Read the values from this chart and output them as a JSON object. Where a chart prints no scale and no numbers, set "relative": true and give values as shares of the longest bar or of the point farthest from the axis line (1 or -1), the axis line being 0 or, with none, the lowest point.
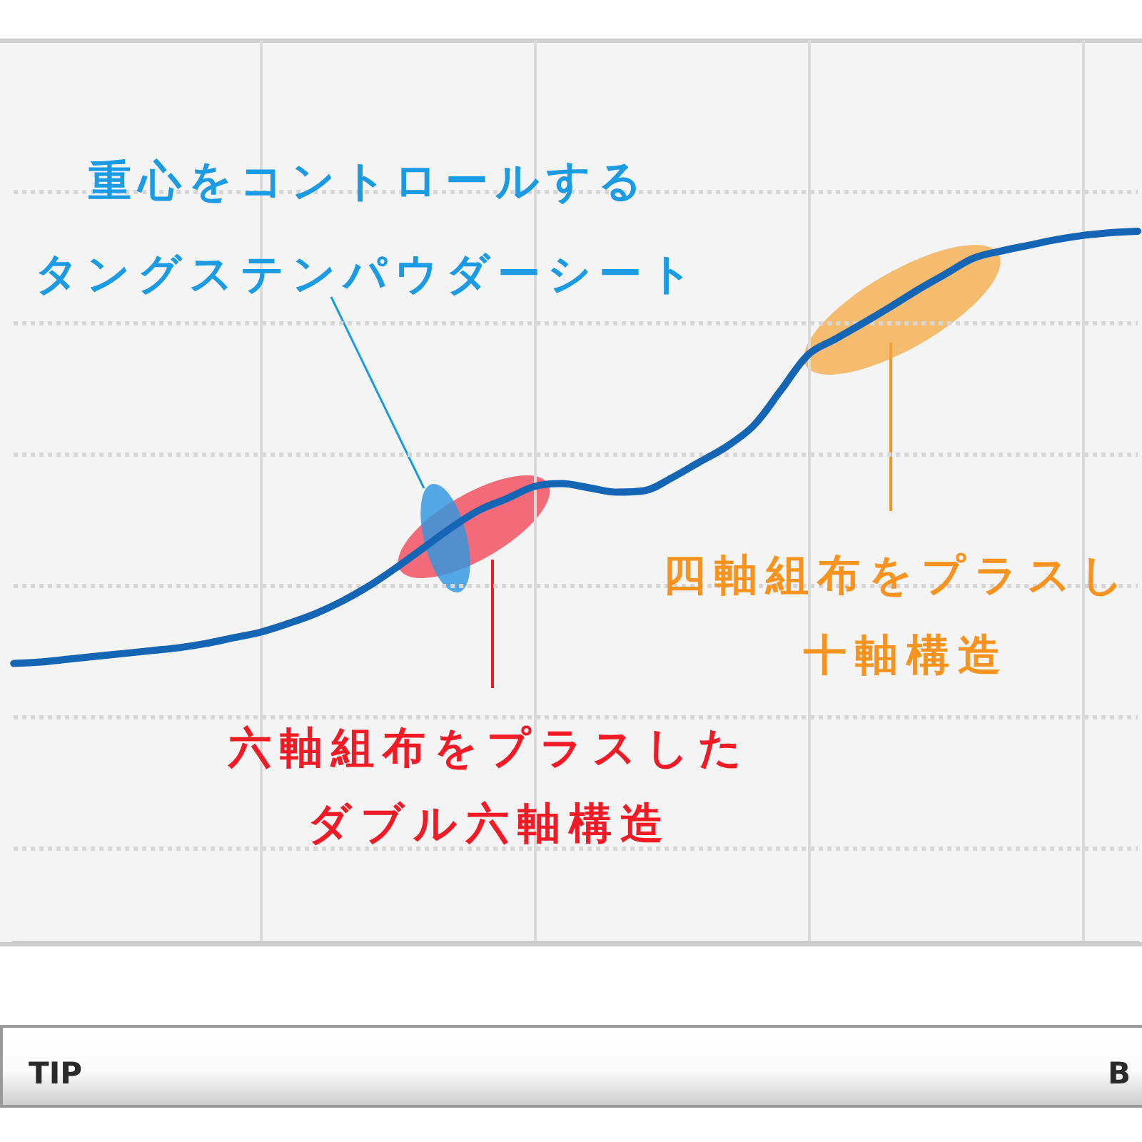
{
  "chart_data": {
    "type": "line",
    "relative": true,
    "categories": [
      null,
      null,
      null,
      null,
      null,
      null,
      null,
      null,
      null,
      null,
      null,
      null,
      null,
      null,
      null,
      null,
      null,
      null,
      null,
      null,
      null,
      null,
      null,
      null,
      null,
      null,
      null,
      null,
      null,
      null,
      null,
      null,
      null,
      null,
      null,
      null,
      null,
      null,
      null,
      null,
      null,
      null
    ],
    "series": [
      {
        "color": "#1565b5",
        "values": [
          0.392,
          0.394,
          0.398,
          0.402,
          0.406,
          0.41,
          0.414,
          0.42,
          0.428,
          0.436,
          0.448,
          0.462,
          0.48,
          0.502,
          0.528,
          0.556,
          0.584,
          0.608,
          0.624,
          0.641,
          0.645,
          0.639,
          0.633,
          0.635,
          0.653,
          0.675,
          0.697,
          0.727,
          0.777,
          0.827,
          0.849,
          0.871,
          0.894,
          0.918,
          0.94,
          0.962,
          0.972,
          0.98,
          0.988,
          0.994,
          0.998,
          1
        ]
      }
    ],
    "grid": true,
    "marker": "none",
    "line_style": "solid",
    "annotations": [
      "重心をコントロールする",
      "タングステンパウダーシート",
      "六軸組布をプラスした",
      "ダブル六軸構造",
      "四軸組布をプラスし",
      "十軸構造",
      "TIP",
      "B"
    ]
  }
}
